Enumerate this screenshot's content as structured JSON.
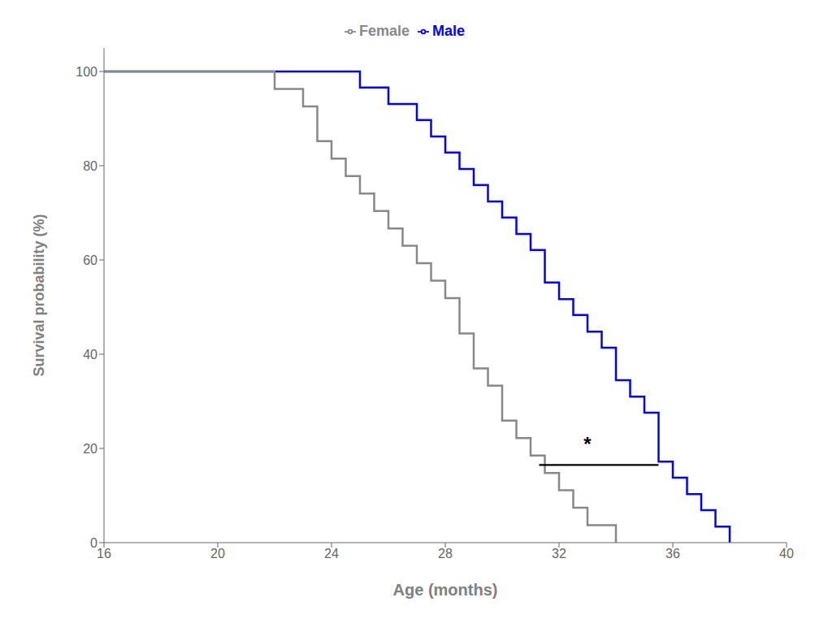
{
  "chart_data": {
    "type": "step",
    "xlabel": "Age (months)",
    "ylabel": "Survival probability (%)",
    "series": [
      {
        "name": "Male",
        "color": "#0000ff",
        "x": [
          16,
          24,
          25,
          26,
          27,
          27.5,
          28,
          28.5,
          29,
          29.5,
          30,
          30.5,
          31,
          31.5,
          32,
          32.5,
          33,
          33.5,
          34,
          34.5,
          35,
          35.5,
          36,
          36.5,
          37,
          37.5,
          38
        ],
        "values": [
          100,
          100,
          96.6,
          93.1,
          89.7,
          86.2,
          82.8,
          79.3,
          75.9,
          72.4,
          69.0,
          65.5,
          62.1,
          55.2,
          51.7,
          48.3,
          44.8,
          41.4,
          34.5,
          31.0,
          27.6,
          17.2,
          13.8,
          10.3,
          6.9,
          3.4,
          0
        ]
      },
      {
        "name": "Female",
        "color": "#888888",
        "x": [
          16,
          21.5,
          22,
          23,
          23.5,
          24,
          24.5,
          25,
          25.5,
          26,
          26.5,
          27,
          27.5,
          28,
          28.5,
          29,
          29.5,
          30,
          30.5,
          31,
          31.5,
          32,
          32.5,
          33,
          33.5,
          34
        ],
        "values": [
          100,
          100,
          96.3,
          92.6,
          85.2,
          81.5,
          77.8,
          74.1,
          70.4,
          66.7,
          63.0,
          59.3,
          55.6,
          51.9,
          44.4,
          37.0,
          33.3,
          25.9,
          22.2,
          18.5,
          14.8,
          11.1,
          7.4,
          3.7,
          3.7,
          0
        ]
      }
    ],
    "annotations": [
      {
        "text": "*",
        "x": 33.0,
        "y": 19.5
      }
    ],
    "segments": [
      {
        "x": [
          31.3,
          35.5
        ],
        "y": [
          16.5,
          16.5
        ],
        "color": "#000000"
      }
    ],
    "xlim": [
      16,
      40
    ],
    "ylim": [
      0,
      105
    ],
    "xticks": [
      16,
      20,
      24,
      28,
      32,
      36,
      40
    ],
    "yticks": [
      0,
      20,
      40,
      60,
      80,
      100
    ],
    "grid": false,
    "legend": "top"
  }
}
